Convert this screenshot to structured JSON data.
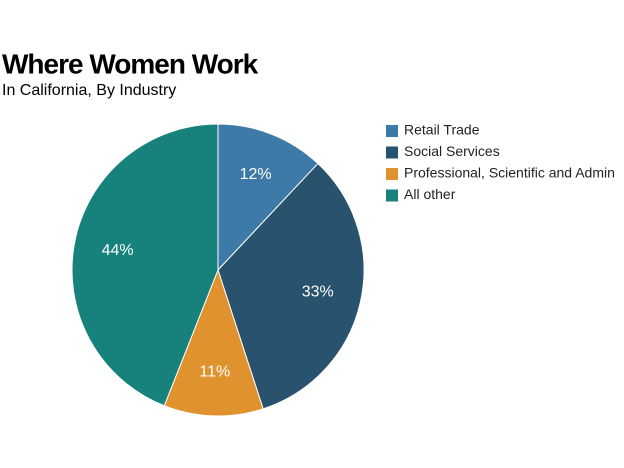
{
  "chart_data": {
    "type": "pie",
    "title": "Where Women Work",
    "subtitle": "In California, By Industry",
    "categories": [
      "Retail Trade",
      "Social Services",
      "Professional, Scientific and Admin",
      "All other"
    ],
    "values": [
      12,
      33,
      11,
      44
    ],
    "value_labels": [
      "12%",
      "33%",
      "11%",
      "44%"
    ],
    "colors": [
      "#3d7aa8",
      "#28526d",
      "#e0922e",
      "#17817b"
    ]
  }
}
